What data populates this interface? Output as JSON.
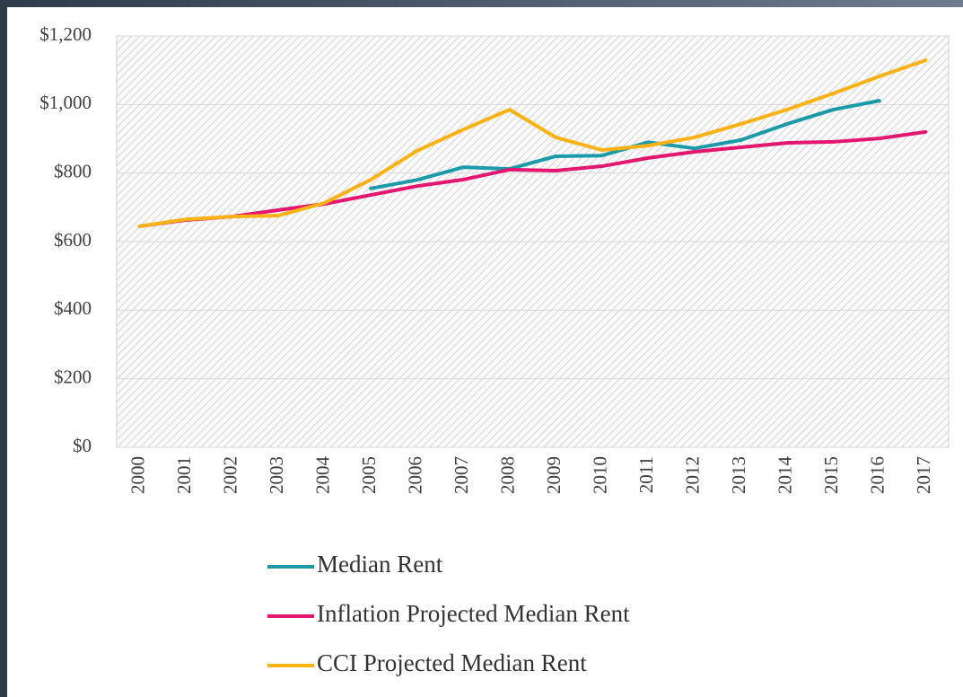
{
  "chart_data": {
    "type": "line",
    "categories": [
      "2000",
      "2001",
      "2002",
      "2003",
      "2004",
      "2005",
      "2006",
      "2007",
      "2008",
      "2009",
      "2010",
      "2011",
      "2012",
      "2013",
      "2014",
      "2015",
      "2016",
      "2017"
    ],
    "series": [
      {
        "name": "Median Rent",
        "color": "#1b9aaa",
        "values": [
          null,
          null,
          null,
          null,
          null,
          755,
          780,
          817,
          812,
          849,
          851,
          890,
          872,
          896,
          943,
          985,
          1011,
          null
        ]
      },
      {
        "name": "Inflation Projected Median Rent",
        "color": "#e3176f",
        "values": [
          645,
          663,
          673,
          692,
          710,
          736,
          762,
          781,
          810,
          807,
          820,
          844,
          862,
          875,
          888,
          891,
          901,
          920
        ]
      },
      {
        "name": "CCI Projected Median Rent",
        "color": "#fcb215",
        "values": [
          645,
          665,
          673,
          676,
          713,
          781,
          865,
          927,
          985,
          904,
          867,
          880,
          904,
          943,
          985,
          1032,
          1082,
          1129
        ]
      }
    ],
    "ylim": [
      0,
      1200
    ],
    "yticks": [
      {
        "value": 0,
        "label": "$0"
      },
      {
        "value": 200,
        "label": "$200"
      },
      {
        "value": 400,
        "label": "$400"
      },
      {
        "value": 600,
        "label": "$600"
      },
      {
        "value": 800,
        "label": "$800"
      },
      {
        "value": 1000,
        "label": "$1,000"
      },
      {
        "value": 1200,
        "label": "$1,200"
      }
    ],
    "grid": true,
    "legend": "bottom"
  }
}
